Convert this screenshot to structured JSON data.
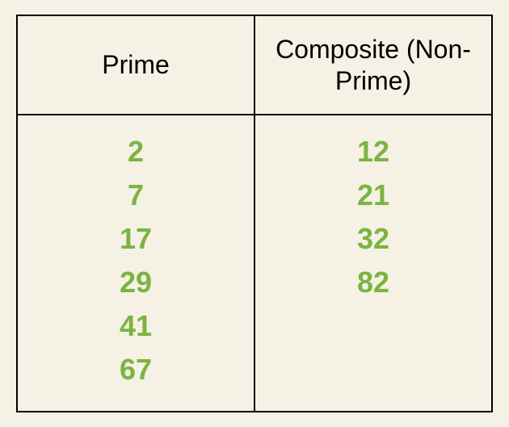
{
  "table": {
    "type": "table",
    "background_color": "#f5f1e4",
    "border_color": "#000000",
    "border_width": 2,
    "header_text_color": "#000000",
    "header_fontsize": 32,
    "number_color": "#7cb342",
    "number_fontsize": 36,
    "font_family": "Comic Sans MS",
    "columns": [
      {
        "header": "Prime",
        "values": [
          "2",
          "7",
          "17",
          "29",
          "41",
          "67"
        ]
      },
      {
        "header": "Composite (Non-Prime)",
        "values": [
          "12",
          "21",
          "32",
          "82"
        ]
      }
    ]
  }
}
